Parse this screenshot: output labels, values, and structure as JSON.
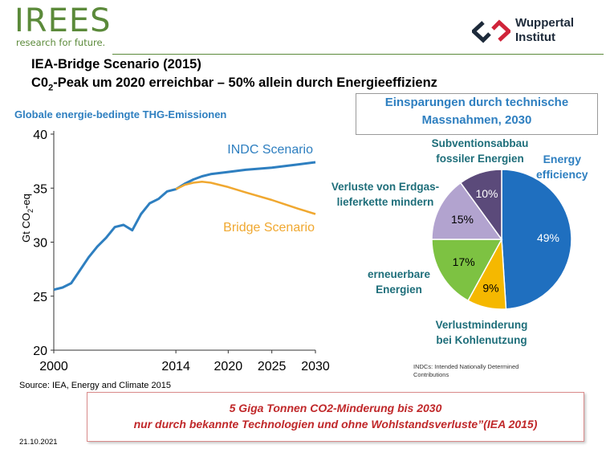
{
  "header": {
    "logo_irees": "IREES",
    "logo_irees_tagline": "research for future.",
    "logo_wi_line1": "Wuppertal",
    "logo_wi_line2": "Institut",
    "title_line1": "IEA-Bridge Scenario (2015)",
    "title_line2_a": "C0",
    "title_line2_sub": "2",
    "title_line2_b": "-Peak um 2020 erreichbar – 50% allein durch Energieeffizienz",
    "accent_green": "#5b8a3a",
    "accent_blue": "#2e7fc0"
  },
  "chart_data": [
    {
      "type": "line",
      "title": "Globale energie-bedingte  THG-Emissionen",
      "xlabel": "",
      "ylabel_a": "Gt CO",
      "ylabel_sub": "2",
      "ylabel_b": "-eq",
      "xlim": [
        2000,
        2030
      ],
      "ylim": [
        20,
        40
      ],
      "x_ticks": [
        2000,
        2014,
        2020,
        2025,
        2030
      ],
      "y_ticks": [
        20,
        25,
        30,
        35,
        40
      ],
      "series": [
        {
          "name": "INDC Scenario",
          "color": "#2e7fc0",
          "x": [
            2000,
            2001,
            2002,
            2003,
            2004,
            2005,
            2006,
            2007,
            2008,
            2009,
            2010,
            2011,
            2012,
            2013,
            2014,
            2015,
            2016,
            2017,
            2018,
            2020,
            2022,
            2025,
            2028,
            2030
          ],
          "y": [
            25.6,
            25.8,
            26.2,
            27.4,
            28.6,
            29.6,
            30.4,
            31.4,
            31.6,
            31.1,
            32.6,
            33.6,
            34.0,
            34.7,
            34.9,
            35.4,
            35.8,
            36.1,
            36.3,
            36.5,
            36.7,
            36.9,
            37.2,
            37.4
          ]
        },
        {
          "name": "Bridge Scenario",
          "color": "#f0a830",
          "x": [
            2014,
            2015,
            2016,
            2017,
            2018,
            2020,
            2022,
            2025,
            2028,
            2030
          ],
          "y": [
            34.9,
            35.3,
            35.5,
            35.6,
            35.5,
            35.1,
            34.6,
            33.9,
            33.1,
            32.6
          ]
        }
      ]
    },
    {
      "type": "pie",
      "title_line1": "Einsparungen durch technische",
      "title_line2": "Massnahmen, 2030",
      "slices": [
        {
          "name": "Energy efficiency",
          "value": 49,
          "label": "49%",
          "color": "#1f6fbf"
        },
        {
          "name": "Verlustminderung bei Kohlenutzung",
          "value": 9,
          "label": "9%",
          "color": "#f5b800"
        },
        {
          "name": "erneuerbare Energien",
          "value": 17,
          "label": "17%",
          "color": "#7dc242"
        },
        {
          "name": "Verluste von Erdgas-lieferkette mindern",
          "value": 15,
          "label": "15%",
          "color": "#b2a3cf"
        },
        {
          "name": "Subventionsabbau fossiler Energien",
          "value": 10,
          "label": "10%",
          "color": "#5b4a7a"
        }
      ],
      "labels": {
        "energy_1": "Energy",
        "energy_2": "efficiency",
        "subv_1": "Subventionsabbau",
        "subv_2": "fossiler Energien",
        "verl_1": "Verluste von Erdgas-",
        "verl_2": "lieferkette mindern",
        "ern_1": "erneuerbare",
        "ern_2": "Energien",
        "kohle_1": "Verlustminderung",
        "kohle_2": "bei Kohlenutzung"
      }
    }
  ],
  "notes": {
    "indc_1": "INDCs: Intended Nationally Determined",
    "indc_2": "Contributions",
    "source": "Source: IEA, Energy and Climate 2015",
    "bottom_line1": "5 Giga Tonnen CO2-Minderung bis 2030",
    "bottom_line2": "nur durch bekannte Technologien und ohne Wohlstandsverluste”(IEA 2015)",
    "date": "21.10.2021"
  }
}
